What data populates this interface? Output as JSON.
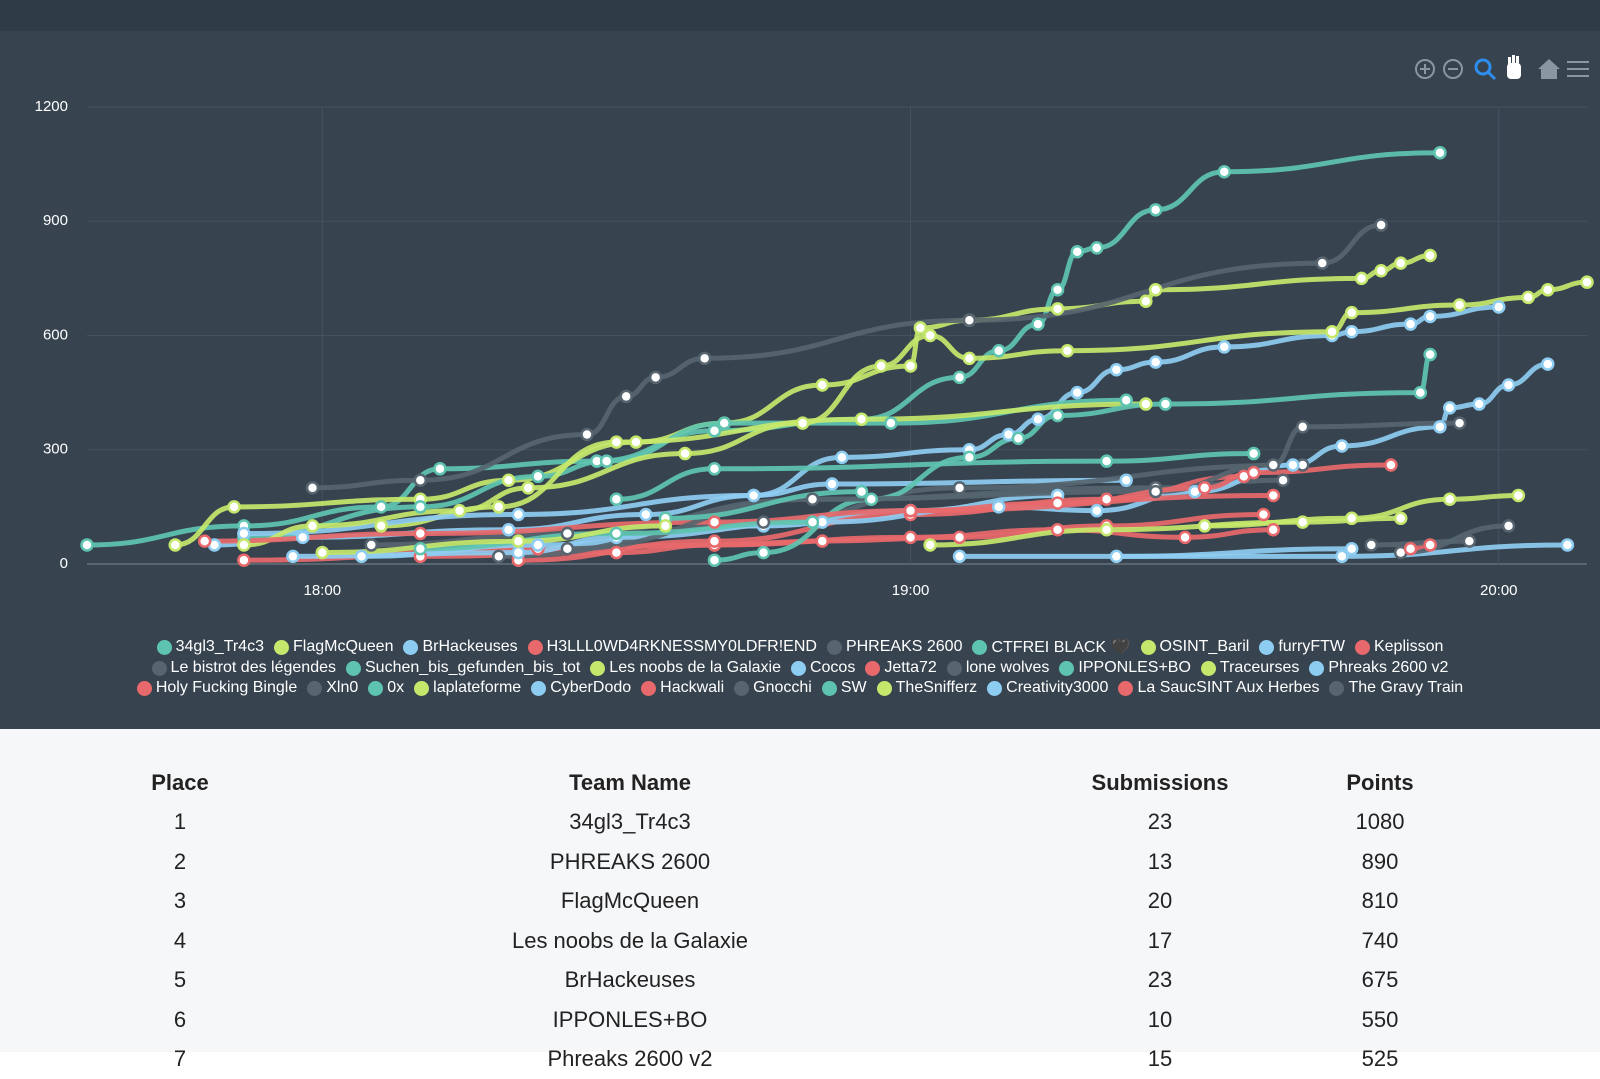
{
  "chart_data": {
    "type": "line",
    "xlim": [
      "17:36",
      "20:09"
    ],
    "xticks": [
      "18:00",
      "19:00",
      "20:00"
    ],
    "ylim": [
      0,
      1200
    ],
    "yticks": [
      0,
      300,
      600,
      900,
      1200
    ],
    "grid": true,
    "series": [
      {
        "name": "34gl3_Tr4c3",
        "color": "#5ec4b0",
        "x": [
          "17:36",
          "17:52",
          "18:06",
          "18:12",
          "18:28",
          "18:40",
          "18:55",
          "19:05",
          "19:09",
          "19:13",
          "19:15",
          "19:17",
          "19:19",
          "19:25",
          "19:32",
          "19:54"
        ],
        "values": [
          50,
          100,
          150,
          250,
          270,
          350,
          380,
          490,
          560,
          630,
          720,
          820,
          830,
          930,
          1030,
          1080
        ]
      },
      {
        "name": "FlagMcQueen",
        "color": "#c5e86c",
        "x": [
          "17:45",
          "17:51",
          "18:10",
          "18:19",
          "18:32",
          "18:41",
          "18:51",
          "19:00",
          "19:01",
          "19:06",
          "19:15",
          "19:24",
          "19:25",
          "19:46",
          "19:48",
          "19:50",
          "19:53"
        ],
        "values": [
          50,
          150,
          170,
          220,
          320,
          370,
          470,
          520,
          620,
          640,
          670,
          690,
          720,
          750,
          770,
          790,
          810
        ]
      },
      {
        "name": "BrHackeuses",
        "color": "#8ecdf2",
        "x": [
          "17:49",
          "17:58",
          "18:19",
          "18:33",
          "18:44",
          "18:53",
          "19:06",
          "19:10",
          "19:13",
          "19:17",
          "19:21",
          "19:25",
          "19:32",
          "19:43",
          "19:45",
          "19:51",
          "19:53",
          "20:00"
        ],
        "values": [
          50,
          70,
          90,
          130,
          180,
          280,
          300,
          340,
          380,
          450,
          510,
          530,
          570,
          600,
          610,
          630,
          650,
          675
        ]
      },
      {
        "name": "H3LLL0WD4RKNESSMY0LDFR!END",
        "color": "#e8696b",
        "x": [
          "18:10",
          "18:30",
          "18:40",
          "19:00",
          "19:15",
          "19:28",
          "19:37"
        ],
        "values": [
          20,
          30,
          50,
          70,
          90,
          70,
          90
        ]
      },
      {
        "name": "PHREAKS 2600",
        "color": "#56656f",
        "x": [
          "17:59",
          "18:10",
          "18:27",
          "18:31",
          "18:34",
          "18:39",
          "19:06",
          "19:42",
          "19:48"
        ],
        "values": [
          200,
          220,
          340,
          440,
          490,
          540,
          640,
          790,
          890
        ]
      },
      {
        "name": "CTFREI BLACK 🖤",
        "color": "#5ec4b0",
        "x": [
          "17:52",
          "18:10",
          "18:22",
          "18:29",
          "18:41",
          "18:58",
          "19:22"
        ],
        "values": [
          70,
          150,
          230,
          270,
          370,
          370,
          430
        ]
      },
      {
        "name": "OSINT_Baril",
        "color": "#c5e86c",
        "x": [
          "18:06",
          "18:18",
          "18:30",
          "18:55",
          "19:24"
        ],
        "values": [
          100,
          150,
          320,
          380,
          420
        ]
      },
      {
        "name": "furryFTW",
        "color": "#8ecdf2",
        "x": [
          "17:52",
          "18:20",
          "18:44",
          "18:52",
          "19:22"
        ],
        "values": [
          80,
          130,
          180,
          210,
          220
        ]
      },
      {
        "name": "Keplisson",
        "color": "#e8696b",
        "x": [
          "17:52",
          "18:22",
          "18:40",
          "18:51",
          "19:05",
          "19:20",
          "19:36"
        ],
        "values": [
          10,
          40,
          50,
          60,
          70,
          100,
          130
        ]
      },
      {
        "name": "Le bistrot des légendes",
        "color": "#56656f",
        "x": [
          "18:05",
          "18:25",
          "18:50",
          "19:25",
          "19:38"
        ],
        "values": [
          50,
          80,
          170,
          200,
          220
        ]
      },
      {
        "name": "Suchen_bis_gefunden_bis_tot",
        "color": "#5ec4b0",
        "x": [
          "18:30",
          "18:40",
          "19:20",
          "19:35"
        ],
        "values": [
          170,
          250,
          270,
          290
        ]
      },
      {
        "name": "Les noobs de la Galaxie",
        "color": "#c5e86c",
        "x": [
          "17:52",
          "17:59",
          "18:14",
          "18:21",
          "18:37",
          "18:49",
          "18:57",
          "19:02",
          "19:06",
          "19:16",
          "19:43",
          "19:45",
          "19:56",
          "20:03",
          "20:05",
          "20:09"
        ],
        "values": [
          50,
          100,
          140,
          200,
          290,
          370,
          520,
          600,
          540,
          560,
          610,
          660,
          680,
          700,
          720,
          740
        ]
      },
      {
        "name": "Cocos",
        "color": "#8ecdf2",
        "x": [
          "18:04",
          "18:22",
          "18:45",
          "19:00",
          "19:15"
        ],
        "values": [
          20,
          50,
          100,
          140,
          180
        ]
      },
      {
        "name": "Jetta72",
        "color": "#e8696b",
        "x": [
          "18:20",
          "18:40",
          "19:00",
          "19:20",
          "19:34"
        ],
        "values": [
          10,
          60,
          130,
          170,
          230
        ]
      },
      {
        "name": "lone wolves",
        "color": "#56656f",
        "x": [
          "18:18",
          "18:45",
          "19:05",
          "19:40"
        ],
        "values": [
          20,
          110,
          200,
          260
        ]
      },
      {
        "name": "IPPONLES+BO",
        "color": "#5ec4b0",
        "x": [
          "18:40",
          "18:45",
          "18:56",
          "19:06",
          "19:11",
          "19:15",
          "19:26",
          "19:52",
          "19:53"
        ],
        "values": [
          10,
          30,
          170,
          280,
          330,
          390,
          420,
          450,
          550
        ]
      },
      {
        "name": "Traceurses",
        "color": "#c5e86c",
        "x": [
          "19:02",
          "19:20",
          "19:40",
          "19:50"
        ],
        "values": [
          50,
          90,
          110,
          120
        ]
      },
      {
        "name": "Phreaks 2600 v2",
        "color": "#8ecdf2",
        "x": [
          "17:57",
          "18:20",
          "18:30",
          "18:51",
          "19:09",
          "19:19",
          "19:29",
          "19:39",
          "19:44",
          "19:54",
          "19:55",
          "19:58",
          "20:01",
          "20:05"
        ],
        "values": [
          20,
          30,
          70,
          110,
          150,
          140,
          190,
          260,
          310,
          360,
          410,
          420,
          470,
          525
        ]
      },
      {
        "name": "Holy Fucking Bingle",
        "color": "#e8696b",
        "x": [
          "17:48",
          "18:10",
          "18:40",
          "19:00",
          "19:37"
        ],
        "values": [
          60,
          80,
          110,
          140,
          180
        ]
      },
      {
        "name": "Xln0",
        "color": "#56656f",
        "x": [
          "18:25",
          "18:50",
          "19:25",
          "19:37",
          "19:40",
          "19:56"
        ],
        "values": [
          40,
          170,
          190,
          260,
          360,
          370
        ]
      },
      {
        "name": "0x",
        "color": "#5ec4b0",
        "x": [
          "18:35",
          "18:55"
        ],
        "values": [
          120,
          190
        ]
      },
      {
        "name": "laplateforme",
        "color": "#c5e86c",
        "x": [
          "19:30",
          "19:45",
          "19:55",
          "20:02"
        ],
        "values": [
          100,
          120,
          170,
          180
        ]
      },
      {
        "name": "CyberDodo",
        "color": "#8ecdf2",
        "x": [
          "19:05",
          "19:44",
          "20:07"
        ],
        "values": [
          20,
          20,
          50
        ]
      },
      {
        "name": "Hackwali",
        "color": "#e8696b",
        "x": [
          "19:00",
          "19:15",
          "19:30",
          "19:35",
          "19:49"
        ],
        "values": [
          140,
          160,
          200,
          240,
          260
        ]
      },
      {
        "name": "Gnocchi",
        "color": "#56656f",
        "x": [
          "19:50",
          "20:01"
        ],
        "values": [
          30,
          100
        ]
      },
      {
        "name": "SW",
        "color": "#5ec4b0",
        "x": [
          "18:10",
          "18:30",
          "18:50"
        ],
        "values": [
          40,
          80,
          110
        ]
      },
      {
        "name": "TheSnifferz",
        "color": "#c5e86c",
        "x": [
          "18:00",
          "18:20",
          "18:35"
        ],
        "values": [
          30,
          60,
          100
        ]
      },
      {
        "name": "Creativity3000",
        "color": "#8ecdf2",
        "x": [
          "19:21",
          "19:45"
        ],
        "values": [
          20,
          40
        ]
      },
      {
        "name": "La SaucSINT Aux Herbes",
        "color": "#e8696b",
        "x": [
          "19:51",
          "19:53"
        ],
        "values": [
          40,
          50
        ]
      },
      {
        "name": "The Gravy Train",
        "color": "#56656f",
        "x": [
          "19:47",
          "19:57"
        ],
        "values": [
          50,
          60
        ]
      }
    ]
  },
  "table": {
    "columns": [
      "Place",
      "Team Name",
      "Submissions",
      "Points"
    ],
    "rows": [
      [
        1,
        "34gl3_Tr4c3",
        23,
        1080
      ],
      [
        2,
        "PHREAKS 2600",
        13,
        890
      ],
      [
        3,
        "FlagMcQueen",
        20,
        810
      ],
      [
        4,
        "Les noobs de la Galaxie",
        17,
        740
      ],
      [
        5,
        "BrHackeuses",
        23,
        675
      ],
      [
        6,
        "IPPONLES+BO",
        10,
        550
      ],
      [
        7,
        "Phreaks 2600 v2",
        15,
        525
      ]
    ]
  }
}
